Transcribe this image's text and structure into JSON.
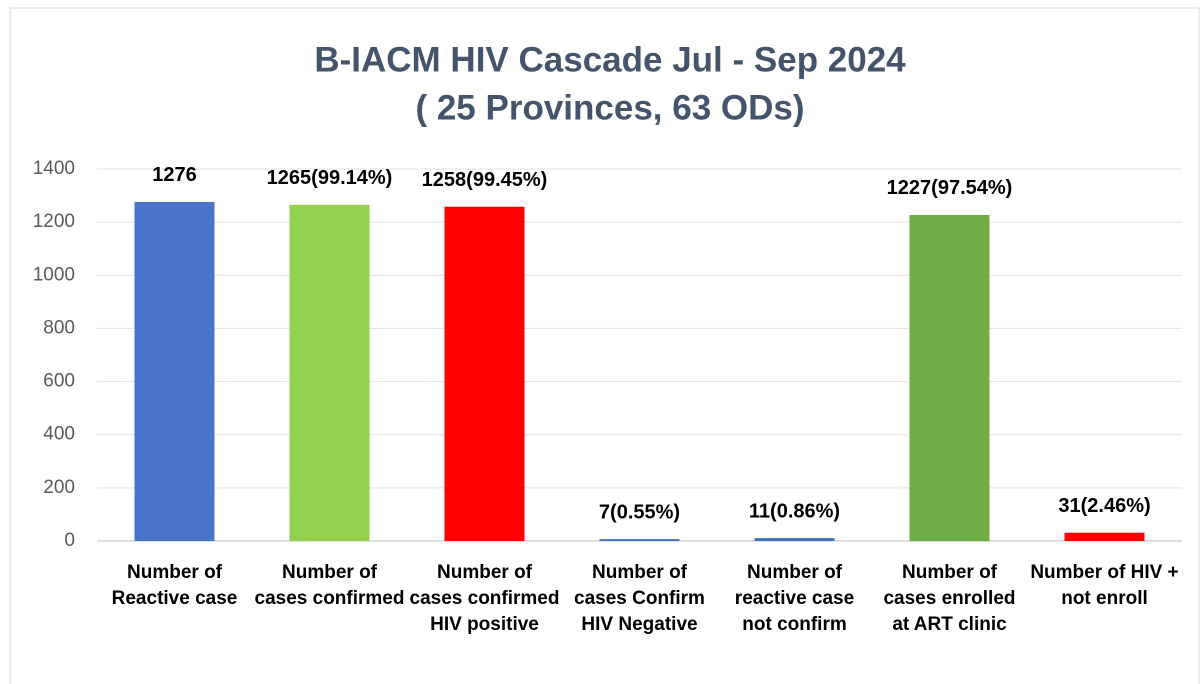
{
  "chart_data": {
    "type": "bar",
    "title": "B-IACM HIV Cascade Jul - Sep 2024",
    "subtitle": "( 25 Provinces, 63 ODs)",
    "categories": [
      "Number of Reactive case",
      "Number of cases confirmed",
      "Number of cases confirmed HIV positive",
      "Number of cases Confirm HIV Negative",
      "Number of reactive case not confirm",
      "Number of cases enrolled at ART clinic",
      "Number of HIV + not enroll"
    ],
    "values": [
      1276,
      1265,
      1258,
      7,
      11,
      1227,
      31
    ],
    "value_labels": [
      "1276",
      "1265(99.14%)",
      "1258(99.45%)",
      "7(0.55%)",
      "11(0.86%)",
      "1227(97.54%)",
      "31(2.46%)"
    ],
    "colors": [
      "#4a74c8",
      "#92d050",
      "#ff0000",
      "#4472c4",
      "#4472c4",
      "#70ad47",
      "#ff0000"
    ],
    "ylim": [
      0,
      1400
    ],
    "yticks": [
      0,
      200,
      400,
      600,
      800,
      1000,
      1200,
      1400
    ],
    "grid": true
  }
}
